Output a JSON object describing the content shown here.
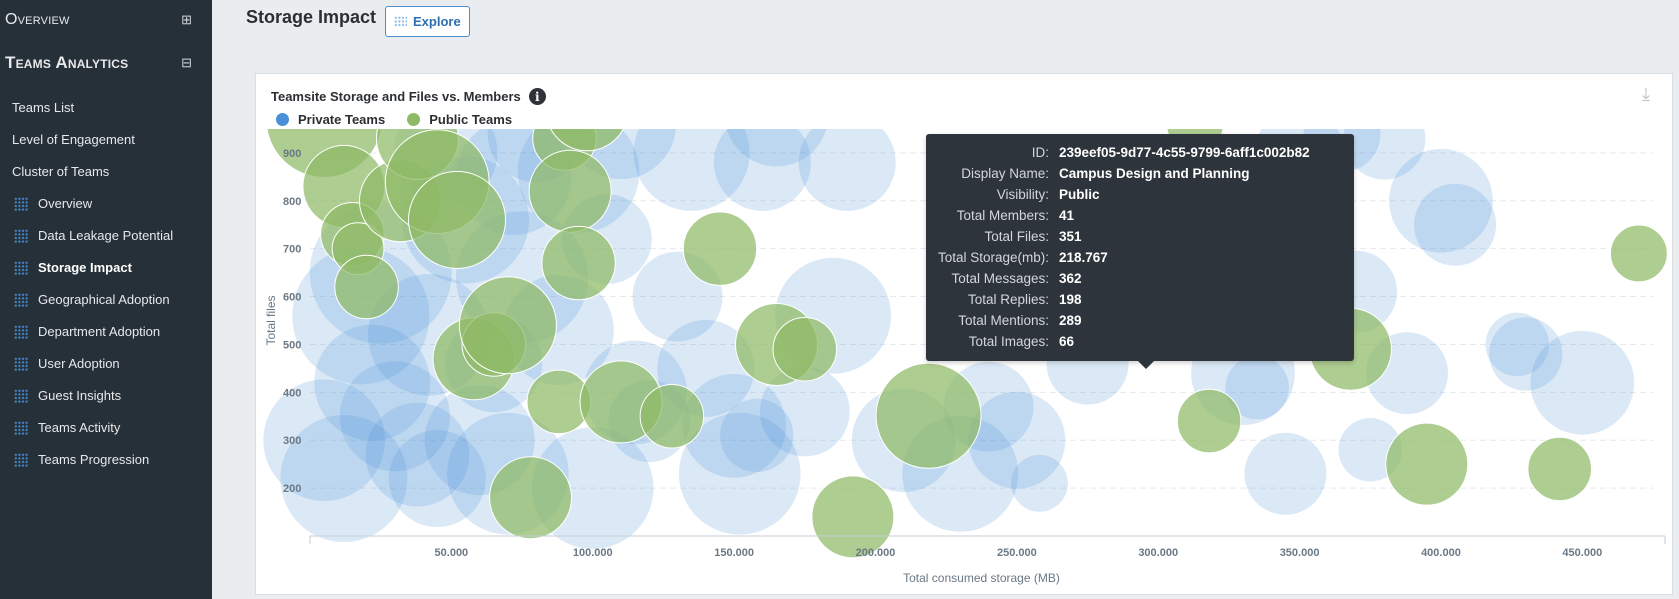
{
  "sidebar": {
    "sections": [
      {
        "title": "Overview",
        "toggle": "⊞"
      },
      {
        "title": "Teams Analytics",
        "toggle": "⊟"
      }
    ],
    "items": [
      {
        "label": "Teams List"
      },
      {
        "label": "Level of Engagement"
      },
      {
        "label": "Cluster of Teams"
      }
    ],
    "sub_items": [
      {
        "label": "Overview"
      },
      {
        "label": "Data Leakage Potential"
      },
      {
        "label": "Storage Impact",
        "active": true
      },
      {
        "label": "Geographical Adoption"
      },
      {
        "label": "Department Adoption"
      },
      {
        "label": "User Adoption"
      },
      {
        "label": "Guest Insights"
      },
      {
        "label": "Teams Activity"
      },
      {
        "label": "Teams Progression"
      }
    ]
  },
  "header": {
    "title": "Storage Impact",
    "explore_label": "Explore"
  },
  "card": {
    "info_icon": "i",
    "download_icon": "⤓"
  },
  "tooltip": {
    "rows": [
      {
        "key": "ID:",
        "value": "239eef05-9d77-4c55-9799-6aff1c002b82"
      },
      {
        "key": "Display Name:",
        "value": "Campus Design and Planning"
      },
      {
        "key": "Visibility:",
        "value": "Public"
      },
      {
        "key": "Total Members:",
        "value": "41"
      },
      {
        "key": "Total Files:",
        "value": "351"
      },
      {
        "key": "Total Storage(mb):",
        "value": "218.767"
      },
      {
        "key": "Total Messages:",
        "value": "362"
      },
      {
        "key": "Total Replies:",
        "value": "198"
      },
      {
        "key": "Total Mentions:",
        "value": "289"
      },
      {
        "key": "Total Images:",
        "value": "66"
      }
    ]
  },
  "colors": {
    "private": "#4a90d9",
    "public": "#8fba65",
    "sidebar_bg": "#263038",
    "tooltip_bg": "#2e343b"
  },
  "chart_data": {
    "type": "scatter",
    "title": "Teamsite Storage and Files vs. Members",
    "xlabel": "Total consumed storage (MB)",
    "ylabel": "Total files",
    "xlim": [
      0,
      475000
    ],
    "ylim": [
      100,
      1000
    ],
    "x_ticks": [
      "50.000",
      "100.000",
      "150.000",
      "200.000",
      "250.000",
      "300.000",
      "350.000",
      "400.000",
      "450.000"
    ],
    "x_tick_values": [
      50000,
      100000,
      150000,
      200000,
      250000,
      300000,
      350000,
      400000,
      450000
    ],
    "y_ticks": [
      "200",
      "300",
      "400",
      "500",
      "600",
      "700",
      "800",
      "900"
    ],
    "y_tick_values": [
      200,
      300,
      400,
      500,
      600,
      700,
      800,
      900
    ],
    "grid": "horizontal-dashed",
    "legend": "top-left",
    "bubble_size": "Total Members",
    "series": [
      {
        "name": "Private Teams",
        "points": [
          [
            5000,
            300,
            55
          ],
          [
            12000,
            220,
            60
          ],
          [
            18000,
            560,
            70
          ],
          [
            22000,
            420,
            50
          ],
          [
            25000,
            650,
            75
          ],
          [
            30000,
            350,
            45
          ],
          [
            38000,
            270,
            40
          ],
          [
            42000,
            520,
            55
          ],
          [
            45000,
            220,
            35
          ],
          [
            48000,
            900,
            40
          ],
          [
            55000,
            760,
            60
          ],
          [
            60000,
            300,
            45
          ],
          [
            65000,
            460,
            35
          ],
          [
            70000,
            230,
            55
          ],
          [
            72000,
            850,
            50
          ],
          [
            75000,
            640,
            65
          ],
          [
            80000,
            940,
            35
          ],
          [
            88000,
            530,
            45
          ],
          [
            95000,
            860,
            55
          ],
          [
            100000,
            200,
            55
          ],
          [
            105000,
            720,
            30
          ],
          [
            110000,
            960,
            45
          ],
          [
            115000,
            400,
            40
          ],
          [
            120000,
            340,
            25
          ],
          [
            130000,
            600,
            30
          ],
          [
            135000,
            900,
            50
          ],
          [
            140000,
            450,
            35
          ],
          [
            150000,
            330,
            40
          ],
          [
            152000,
            230,
            55
          ],
          [
            158000,
            310,
            20
          ],
          [
            160000,
            880,
            35
          ],
          [
            165000,
            980,
            40
          ],
          [
            175000,
            360,
            30
          ],
          [
            185000,
            560,
            50
          ],
          [
            190000,
            880,
            35
          ],
          [
            210000,
            300,
            40
          ],
          [
            230000,
            230,
            50
          ],
          [
            240000,
            370,
            30
          ],
          [
            250000,
            300,
            35
          ],
          [
            258000,
            210,
            12
          ],
          [
            275000,
            460,
            25
          ],
          [
            285000,
            780,
            25
          ],
          [
            330000,
            440,
            40
          ],
          [
            335000,
            410,
            15
          ],
          [
            345000,
            230,
            25
          ],
          [
            350000,
            900,
            30
          ],
          [
            352000,
            810,
            25
          ],
          [
            365000,
            940,
            22
          ],
          [
            370000,
            610,
            25
          ],
          [
            375000,
            280,
            15
          ],
          [
            380000,
            930,
            25
          ],
          [
            388000,
            440,
            25
          ],
          [
            400000,
            800,
            40
          ],
          [
            405000,
            750,
            25
          ],
          [
            427000,
            500,
            15
          ],
          [
            430000,
            480,
            20
          ],
          [
            450000,
            420,
            40
          ]
        ]
      },
      {
        "name": "Public Teams",
        "points": [
          [
            5000,
            970,
            50
          ],
          [
            12000,
            830,
            25
          ],
          [
            15000,
            730,
            15
          ],
          [
            17000,
            700,
            10
          ],
          [
            20000,
            620,
            15
          ],
          [
            32000,
            800,
            25
          ],
          [
            38000,
            930,
            25
          ],
          [
            45000,
            840,
            40
          ],
          [
            52000,
            760,
            35
          ],
          [
            58000,
            470,
            25
          ],
          [
            65000,
            500,
            15
          ],
          [
            70000,
            540,
            35
          ],
          [
            78000,
            180,
            25
          ],
          [
            88000,
            380,
            15
          ],
          [
            90000,
            930,
            15
          ],
          [
            92000,
            820,
            25
          ],
          [
            95000,
            670,
            20
          ],
          [
            98000,
            990,
            25
          ],
          [
            110000,
            380,
            25
          ],
          [
            128000,
            350,
            15
          ],
          [
            145000,
            700,
            20
          ],
          [
            165000,
            500,
            25
          ],
          [
            175000,
            490,
            15
          ],
          [
            192000,
            140,
            25
          ],
          [
            218767,
            351,
            41
          ],
          [
            290000,
            580,
            20
          ],
          [
            313000,
            960,
            12
          ],
          [
            318000,
            340,
            15
          ],
          [
            325000,
            600,
            25
          ],
          [
            368000,
            490,
            25
          ],
          [
            395000,
            250,
            25
          ],
          [
            442000,
            240,
            15
          ],
          [
            470000,
            690,
            12
          ]
        ]
      }
    ],
    "highlighted": {
      "series": "Public Teams",
      "x": 218767,
      "y": 351,
      "members": 41
    }
  }
}
